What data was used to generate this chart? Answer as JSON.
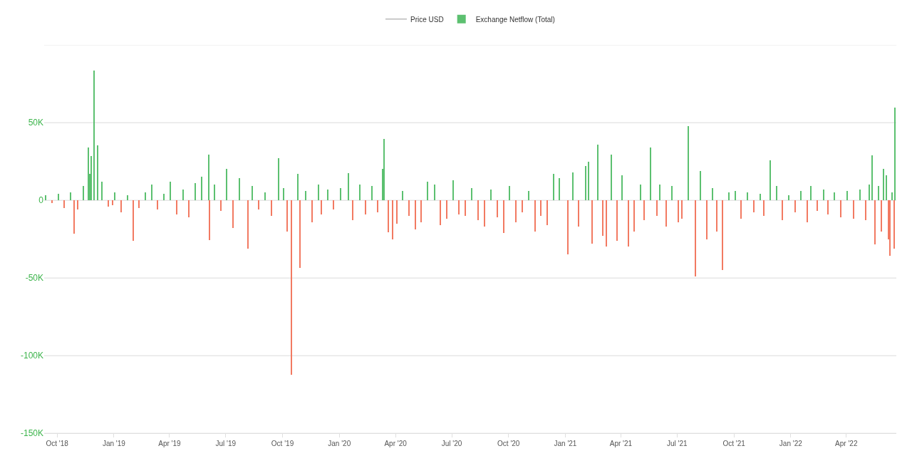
{
  "chart_data": {
    "type": "bar",
    "legend": "top",
    "grid": "y",
    "xlim": [
      "2018-09-10",
      "2022-06-21"
    ],
    "xticks": [
      {
        "value": "2018-10-01",
        "label": "Oct '18"
      },
      {
        "value": "2019-01-01",
        "label": "Jan '19"
      },
      {
        "value": "2019-04-01",
        "label": "Apr '19"
      },
      {
        "value": "2019-07-01",
        "label": "Jul '19"
      },
      {
        "value": "2019-10-01",
        "label": "Oct '19"
      },
      {
        "value": "2020-01-01",
        "label": "Jan '20"
      },
      {
        "value": "2020-04-01",
        "label": "Apr '20"
      },
      {
        "value": "2020-07-01",
        "label": "Jul '20"
      },
      {
        "value": "2020-10-01",
        "label": "Oct '20"
      },
      {
        "value": "2021-01-01",
        "label": "Jan '21"
      },
      {
        "value": "2021-04-01",
        "label": "Apr '21"
      },
      {
        "value": "2021-07-01",
        "label": "Jul '21"
      },
      {
        "value": "2021-10-01",
        "label": "Oct '21"
      },
      {
        "value": "2022-01-01",
        "label": "Jan '22"
      },
      {
        "value": "2022-04-01",
        "label": "Apr '22"
      }
    ],
    "ylim": [
      -150000,
      100000
    ],
    "yticks": [
      {
        "value": -150000,
        "label": "-150K"
      },
      {
        "value": -100000,
        "label": "-100K"
      },
      {
        "value": -50000,
        "label": "-50K"
      },
      {
        "value": 0,
        "label": "0"
      },
      {
        "value": 50000,
        "label": "50K"
      },
      {
        "value": 100000,
        "label": null
      }
    ],
    "series": [
      {
        "name": "Price USD",
        "type": "line",
        "color": "#c8c8c8",
        "values": [
          null
        ]
      },
      {
        "name": "Exchange Netflow (Total)",
        "color": "#5cc070",
        "x": [
          "2018-09-13",
          "2018-10-03",
          "2018-10-23",
          "2018-11-13",
          "2018-11-21",
          "2018-11-23",
          "2018-11-25",
          "2018-11-30",
          "2018-12-06",
          "2018-12-13",
          "2019-01-03",
          "2019-01-23",
          "2019-02-21",
          "2019-03-03",
          "2019-03-23",
          "2019-04-03",
          "2019-04-23",
          "2019-05-13",
          "2019-05-23",
          "2019-06-04",
          "2019-06-13",
          "2019-07-03",
          "2019-07-23",
          "2019-08-13",
          "2019-09-03",
          "2019-09-25",
          "2019-10-03",
          "2019-10-26",
          "2019-11-08",
          "2019-11-28",
          "2019-12-13",
          "2020-01-03",
          "2020-01-16",
          "2020-02-03",
          "2020-02-23",
          "2020-03-11",
          "2020-03-14",
          "2020-04-13",
          "2020-05-23",
          "2020-06-03",
          "2020-07-03",
          "2020-08-03",
          "2020-09-03",
          "2020-10-03",
          "2020-11-03",
          "2020-12-13",
          "2020-12-23",
          "2021-01-13",
          "2021-02-03",
          "2021-02-08",
          "2021-02-23",
          "2021-03-17",
          "2021-04-03",
          "2021-05-03",
          "2021-05-19",
          "2021-06-03",
          "2021-06-23",
          "2021-07-19",
          "2021-08-08",
          "2021-08-28",
          "2021-09-23",
          "2021-10-03",
          "2021-10-23",
          "2021-11-13",
          "2021-11-29",
          "2021-12-09",
          "2021-12-29",
          "2022-01-18",
          "2022-02-03",
          "2022-02-23",
          "2022-03-13",
          "2022-04-03",
          "2022-04-23",
          "2022-05-08",
          "2022-05-13",
          "2022-05-23",
          "2022-06-01",
          "2022-06-05",
          "2022-06-14",
          "2022-06-19"
        ],
        "values": [
          3000,
          4000,
          5000,
          9000,
          34000,
          17000,
          28500,
          83500,
          35500,
          12000,
          5000,
          3000,
          5000,
          10000,
          4000,
          12000,
          7000,
          11000,
          15000,
          29500,
          10000,
          20000,
          14000,
          9000,
          5000,
          27000,
          8000,
          17000,
          6000,
          10000,
          7000,
          8000,
          17500,
          10000,
          9000,
          20000,
          39500,
          6000,
          12000,
          10000,
          13000,
          8000,
          7000,
          9000,
          6000,
          17000,
          14000,
          18000,
          22000,
          25000,
          36000,
          29500,
          16000,
          10000,
          34000,
          10000,
          9000,
          47500,
          19000,
          8000,
          5000,
          6000,
          5000,
          4000,
          25500,
          9000,
          3000,
          6000,
          9000,
          7000,
          5000,
          6000,
          7000,
          10000,
          29000,
          9000,
          20000,
          16000,
          5000,
          59500
        ]
      },
      {
        "color": "#f27a62",
        "x": [
          "2018-09-23",
          "2018-10-13",
          "2018-10-29",
          "2018-11-03",
          "2018-12-23",
          "2018-12-30",
          "2019-01-13",
          "2019-02-01",
          "2019-02-11",
          "2019-03-13",
          "2019-04-13",
          "2019-05-03",
          "2019-06-05",
          "2019-06-23",
          "2019-07-13",
          "2019-08-06",
          "2019-08-23",
          "2019-09-13",
          "2019-10-09",
          "2019-10-16",
          "2019-10-29",
          "2019-11-18",
          "2019-12-03",
          "2019-12-23",
          "2020-01-23",
          "2020-02-13",
          "2020-03-03",
          "2020-03-21",
          "2020-03-28",
          "2020-04-03",
          "2020-04-23",
          "2020-05-03",
          "2020-05-13",
          "2020-06-13",
          "2020-06-23",
          "2020-07-13",
          "2020-07-23",
          "2020-08-13",
          "2020-08-23",
          "2020-09-13",
          "2020-09-23",
          "2020-10-13",
          "2020-10-23",
          "2020-11-13",
          "2020-11-23",
          "2020-12-03",
          "2021-01-05",
          "2021-01-23",
          "2021-02-13",
          "2021-03-03",
          "2021-03-09",
          "2021-03-26",
          "2021-04-13",
          "2021-04-23",
          "2021-05-09",
          "2021-05-29",
          "2021-06-13",
          "2021-07-03",
          "2021-07-09",
          "2021-07-31",
          "2021-08-18",
          "2021-09-03",
          "2021-09-13",
          "2021-10-13",
          "2021-11-03",
          "2021-11-19",
          "2021-12-19",
          "2022-01-08",
          "2022-01-28",
          "2022-02-13",
          "2022-03-03",
          "2022-03-23",
          "2022-04-13",
          "2022-05-03",
          "2022-05-18",
          "2022-05-28",
          "2022-06-08",
          "2022-06-11",
          "2022-06-18"
        ],
        "values": [
          -2000,
          -5000,
          -21500,
          -6000,
          -4000,
          -3000,
          -8000,
          -26000,
          -5000,
          -6000,
          -9000,
          -11000,
          -25500,
          -7000,
          -18000,
          -31000,
          -6000,
          -10000,
          -20000,
          -112500,
          -43500,
          -14000,
          -9000,
          -6000,
          -13000,
          -9000,
          -8000,
          -20500,
          -25000,
          -15000,
          -10000,
          -19000,
          -14000,
          -16000,
          -12000,
          -9000,
          -10000,
          -13000,
          -17000,
          -11000,
          -21000,
          -14000,
          -8000,
          -20000,
          -10000,
          -16000,
          -35000,
          -17000,
          -28000,
          -23000,
          -30000,
          -26000,
          -30000,
          -20000,
          -13000,
          -10000,
          -17000,
          -14000,
          -12000,
          -49000,
          -25000,
          -20000,
          -45000,
          -12000,
          -8000,
          -10000,
          -13000,
          -8000,
          -14000,
          -7000,
          -9000,
          -11000,
          -12000,
          -13000,
          -28500,
          -20000,
          -25000,
          -36000,
          -31000
        ]
      }
    ]
  }
}
